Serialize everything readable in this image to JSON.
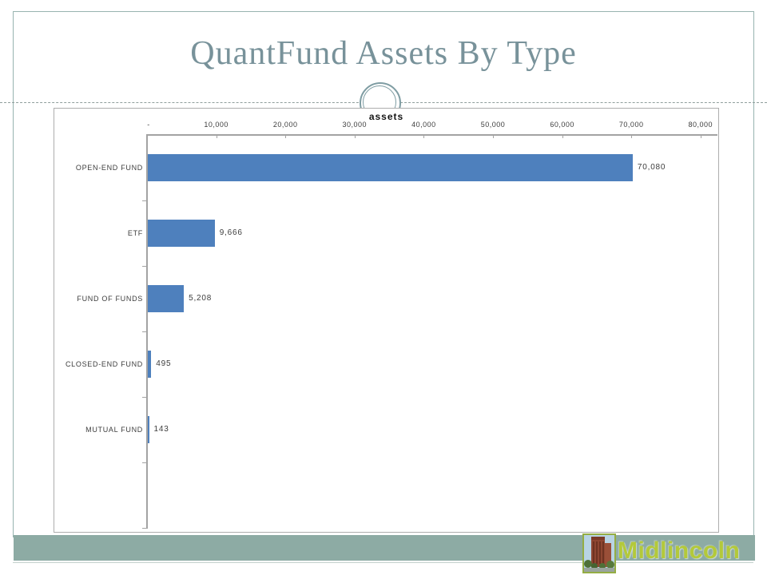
{
  "slide": {
    "title": "QuantFund Assets By Type",
    "footer": {
      "logo_text": "Midlincoln"
    },
    "colors": {
      "title_text": "#78929a",
      "slide_border": "#97b3af",
      "footer_band": "#8daba4",
      "bar_fill": "#4e80bd",
      "logo_text": "#b3c93a",
      "axis_line": "#a3a3a3",
      "chart_border": "#adadad"
    }
  },
  "chart_data": {
    "type": "bar",
    "orientation": "horizontal",
    "title": "assets",
    "categories": [
      "OPEN-END FUND",
      "ETF",
      "FUND OF FUNDS",
      "CLOSED-END FUND",
      "MUTUAL FUND"
    ],
    "values": [
      70080,
      9666,
      5208,
      495,
      143
    ],
    "value_labels": [
      "70,080",
      "9,666",
      "5,208",
      "495",
      "143"
    ],
    "xlabel": "assets",
    "ylabel": "",
    "xlim": [
      0,
      80000
    ],
    "x_tick_labels": [
      "-",
      "10,000",
      "20,000",
      "30,000",
      "40,000",
      "50,000",
      "60,000",
      "70,000",
      "80,000"
    ],
    "x_tick_values": [
      0,
      10000,
      20000,
      30000,
      40000,
      50000,
      60000,
      70000,
      80000
    ],
    "grid": "off",
    "legend": "none",
    "data_labels": "outside-end"
  }
}
